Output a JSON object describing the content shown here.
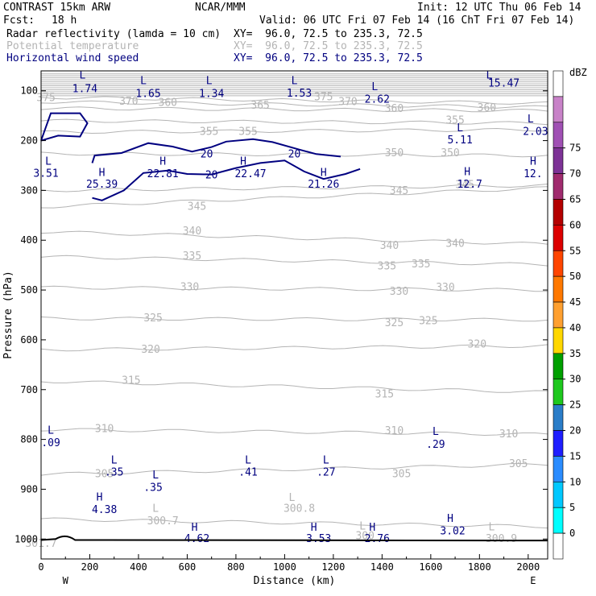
{
  "header": {
    "title": "CONTRAST 15km ARW",
    "org": "NCAR/MMM",
    "init": "Init: 12 UTC Thu 06 Feb 14",
    "fcst_label": "Fcst:",
    "fcst_value": "18 h",
    "valid": "Valid: 06 UTC Fri 07 Feb 14 (16 ChT Fri 07 Feb 14)"
  },
  "fields": [
    {
      "name": "Radar reflectivity (lamda = 10 cm)",
      "xy": "XY=  96.0, 72.5 to 235.3, 72.5",
      "color": "#000000"
    },
    {
      "name": "Potential temperature",
      "xy": "XY=  96.0, 72.5 to 235.3, 72.5",
      "color": "#b4b4b4"
    },
    {
      "name": "Horizontal wind speed",
      "xy": "XY=  96.0, 72.5 to 235.3, 72.5",
      "color": "#000080"
    }
  ],
  "chart_data": {
    "type": "cross-section",
    "xlabel": "Distance (km)",
    "ylabel": "Pressure (hPa)",
    "xlim": [
      0,
      2080
    ],
    "ylim": [
      1040,
      60
    ],
    "x_ticks": [
      0,
      200,
      400,
      600,
      800,
      1000,
      1200,
      1400,
      1600,
      1800,
      2000
    ],
    "y_ticks": [
      100,
      200,
      300,
      400,
      500,
      600,
      700,
      800,
      900,
      1000
    ],
    "west_label": "W",
    "east_label": "E",
    "theta_labels": [
      {
        "t": "375",
        "x": 20,
        "p": 115
      },
      {
        "t": "370",
        "x": 360,
        "p": 122
      },
      {
        "t": "360",
        "x": 520,
        "p": 125
      },
      {
        "t": "365",
        "x": 900,
        "p": 130
      },
      {
        "t": "375",
        "x": 1160,
        "p": 113
      },
      {
        "t": "370",
        "x": 1260,
        "p": 123
      },
      {
        "t": "360",
        "x": 1450,
        "p": 137
      },
      {
        "t": "360",
        "x": 1830,
        "p": 135
      },
      {
        "t": "355",
        "x": 690,
        "p": 183
      },
      {
        "t": "355",
        "x": 850,
        "p": 183
      },
      {
        "t": "355",
        "x": 1700,
        "p": 160
      },
      {
        "t": "350",
        "x": 1450,
        "p": 226
      },
      {
        "t": "350",
        "x": 1680,
        "p": 226
      },
      {
        "t": "345",
        "x": 640,
        "p": 333
      },
      {
        "t": "345",
        "x": 1470,
        "p": 302
      },
      {
        "t": "345",
        "x": 1740,
        "p": 290
      },
      {
        "t": "340",
        "x": 620,
        "p": 383
      },
      {
        "t": "340",
        "x": 1430,
        "p": 412
      },
      {
        "t": "340",
        "x": 1700,
        "p": 408
      },
      {
        "t": "335",
        "x": 620,
        "p": 433
      },
      {
        "t": "335",
        "x": 1420,
        "p": 453
      },
      {
        "t": "335",
        "x": 1560,
        "p": 449
      },
      {
        "t": "330",
        "x": 610,
        "p": 495
      },
      {
        "t": "330",
        "x": 1470,
        "p": 504
      },
      {
        "t": "330",
        "x": 1660,
        "p": 496
      },
      {
        "t": "325",
        "x": 460,
        "p": 557
      },
      {
        "t": "325",
        "x": 1450,
        "p": 567
      },
      {
        "t": "325",
        "x": 1590,
        "p": 563
      },
      {
        "t": "320",
        "x": 450,
        "p": 620
      },
      {
        "t": "320",
        "x": 1790,
        "p": 610
      },
      {
        "t": "315",
        "x": 370,
        "p": 683
      },
      {
        "t": "315",
        "x": 1410,
        "p": 710
      },
      {
        "t": "310",
        "x": 260,
        "p": 780
      },
      {
        "t": "310",
        "x": 1450,
        "p": 784
      },
      {
        "t": "310",
        "x": 1920,
        "p": 790
      },
      {
        "t": "305",
        "x": 260,
        "p": 870
      },
      {
        "t": "305",
        "x": 1480,
        "p": 870
      },
      {
        "t": "305",
        "x": 1960,
        "p": 850
      },
      {
        "t": "300.7",
        "x": 500,
        "p": 965
      },
      {
        "t": "300.8",
        "x": 1060,
        "p": 940
      },
      {
        "t": "300.9",
        "x": 1890,
        "p": 1000
      },
      {
        "t": "300",
        "x": 1330,
        "p": 995
      },
      {
        "t": "301.7",
        "x": 0,
        "p": 1010
      }
    ],
    "theta_extrema": [
      {
        "t": "L",
        "x": 470,
        "p": 940
      },
      {
        "t": "L",
        "x": 1030,
        "p": 918
      },
      {
        "t": "L",
        "x": 1850,
        "p": 977
      },
      {
        "t": "L",
        "x": 1320,
        "p": 975
      }
    ],
    "wind_contours": [
      {
        "value": "20",
        "points": [
          [
            0,
            200
          ],
          [
            40,
            145
          ],
          [
            160,
            145
          ],
          [
            190,
            165
          ],
          [
            160,
            192
          ],
          [
            70,
            190
          ],
          [
            0,
            200
          ]
        ]
      },
      {
        "value": "20",
        "points": [
          [
            210,
            245
          ],
          [
            220,
            230
          ],
          [
            330,
            225
          ],
          [
            440,
            205
          ],
          [
            540,
            212
          ],
          [
            620,
            222
          ],
          [
            700,
            213
          ],
          [
            760,
            202
          ],
          [
            870,
            197
          ],
          [
            950,
            203
          ],
          [
            1060,
            218
          ],
          [
            1130,
            227
          ],
          [
            1230,
            232
          ]
        ]
      },
      {
        "value": "20",
        "points": [
          [
            210,
            315
          ],
          [
            250,
            320
          ],
          [
            340,
            300
          ],
          [
            420,
            265
          ],
          [
            520,
            260
          ],
          [
            600,
            267
          ],
          [
            700,
            268
          ],
          [
            800,
            255
          ],
          [
            900,
            245
          ],
          [
            1000,
            240
          ],
          [
            1080,
            262
          ],
          [
            1160,
            277
          ],
          [
            1250,
            267
          ],
          [
            1310,
            257
          ]
        ]
      }
    ],
    "wind_labels": [
      {
        "t": "20",
        "x": 680,
        "p": 228
      },
      {
        "t": "20",
        "x": 1040,
        "p": 228
      },
      {
        "t": "20",
        "x": 700,
        "p": 270
      }
    ],
    "wind_extrema": [
      {
        "t": "L",
        "x": 170,
        "p": 70
      },
      {
        "t": "1.74",
        "x": 180,
        "p": 97
      },
      {
        "t": "L",
        "x": 420,
        "p": 81
      },
      {
        "t": "1.65",
        "x": 440,
        "p": 107
      },
      {
        "t": "L",
        "x": 690,
        "p": 81
      },
      {
        "t": "1.34",
        "x": 700,
        "p": 107
      },
      {
        "t": "L",
        "x": 1040,
        "p": 81
      },
      {
        "t": "1.53",
        "x": 1060,
        "p": 106
      },
      {
        "t": "L",
        "x": 1370,
        "p": 93
      },
      {
        "t": "2.62",
        "x": 1380,
        "p": 118
      },
      {
        "t": "L",
        "x": 1840,
        "p": 70
      },
      {
        "t": "15.47",
        "x": 1900,
        "p": 86
      },
      {
        "t": "L",
        "x": 1720,
        "p": 176
      },
      {
        "t": "5.11",
        "x": 1720,
        "p": 200
      },
      {
        "t": "L",
        "x": 2010,
        "p": 158
      },
      {
        "t": "2.03",
        "x": 2030,
        "p": 183
      },
      {
        "t": "L",
        "x": 30,
        "p": 243
      },
      {
        "t": "3.51",
        "x": 20,
        "p": 267
      },
      {
        "t": "H",
        "x": 250,
        "p": 265
      },
      {
        "t": "25.39",
        "x": 250,
        "p": 289
      },
      {
        "t": "H",
        "x": 500,
        "p": 243
      },
      {
        "t": "22.81",
        "x": 500,
        "p": 268
      },
      {
        "t": "H",
        "x": 830,
        "p": 243
      },
      {
        "t": "22.47",
        "x": 860,
        "p": 268
      },
      {
        "t": "H",
        "x": 1160,
        "p": 265
      },
      {
        "t": "21.26",
        "x": 1160,
        "p": 289
      },
      {
        "t": "H",
        "x": 1750,
        "p": 264
      },
      {
        "t": "12.7",
        "x": 1760,
        "p": 289
      },
      {
        "t": "H",
        "x": 2020,
        "p": 243
      },
      {
        "t": "12.",
        "x": 2020,
        "p": 268
      },
      {
        "t": "L",
        "x": 40,
        "p": 783
      },
      {
        "t": ".09",
        "x": 40,
        "p": 808
      },
      {
        "t": "L",
        "x": 300,
        "p": 843
      },
      {
        "t": ".35",
        "x": 300,
        "p": 867
      },
      {
        "t": "L",
        "x": 470,
        "p": 873
      },
      {
        "t": ".35",
        "x": 460,
        "p": 898
      },
      {
        "t": "L",
        "x": 850,
        "p": 843
      },
      {
        "t": ".41",
        "x": 850,
        "p": 867
      },
      {
        "t": "L",
        "x": 1170,
        "p": 843
      },
      {
        "t": ".27",
        "x": 1170,
        "p": 867
      },
      {
        "t": "L",
        "x": 1620,
        "p": 785
      },
      {
        "t": ".29",
        "x": 1620,
        "p": 811
      },
      {
        "t": "H",
        "x": 240,
        "p": 917
      },
      {
        "t": "4.38",
        "x": 260,
        "p": 942
      },
      {
        "t": "H",
        "x": 630,
        "p": 978
      },
      {
        "t": "4.62",
        "x": 640,
        "p": 1000
      },
      {
        "t": "H",
        "x": 1120,
        "p": 978
      },
      {
        "t": "3.53",
        "x": 1140,
        "p": 1000
      },
      {
        "t": "H",
        "x": 1360,
        "p": 978
      },
      {
        "t": "2.76",
        "x": 1380,
        "p": 1000
      },
      {
        "t": "H",
        "x": 1680,
        "p": 960
      },
      {
        "t": "3.02",
        "x": 1690,
        "p": 985
      }
    ],
    "colorbar": {
      "unit": "dBZ",
      "levels": [
        0,
        5,
        10,
        15,
        20,
        25,
        30,
        35,
        40,
        45,
        50,
        55,
        60,
        65,
        70,
        75
      ],
      "colors": [
        "#ffffff",
        "#00ffff",
        "#00c8ff",
        "#2a8cff",
        "#1e1eff",
        "#2a7dc8",
        "#1ec81e",
        "#00a000",
        "#ffd700",
        "#ffa030",
        "#ff7800",
        "#ff4500",
        "#dc0000",
        "#b40000",
        "#a02b6e",
        "#7d3296",
        "#a050b4",
        "#c882c8",
        "#ffffff"
      ]
    }
  }
}
